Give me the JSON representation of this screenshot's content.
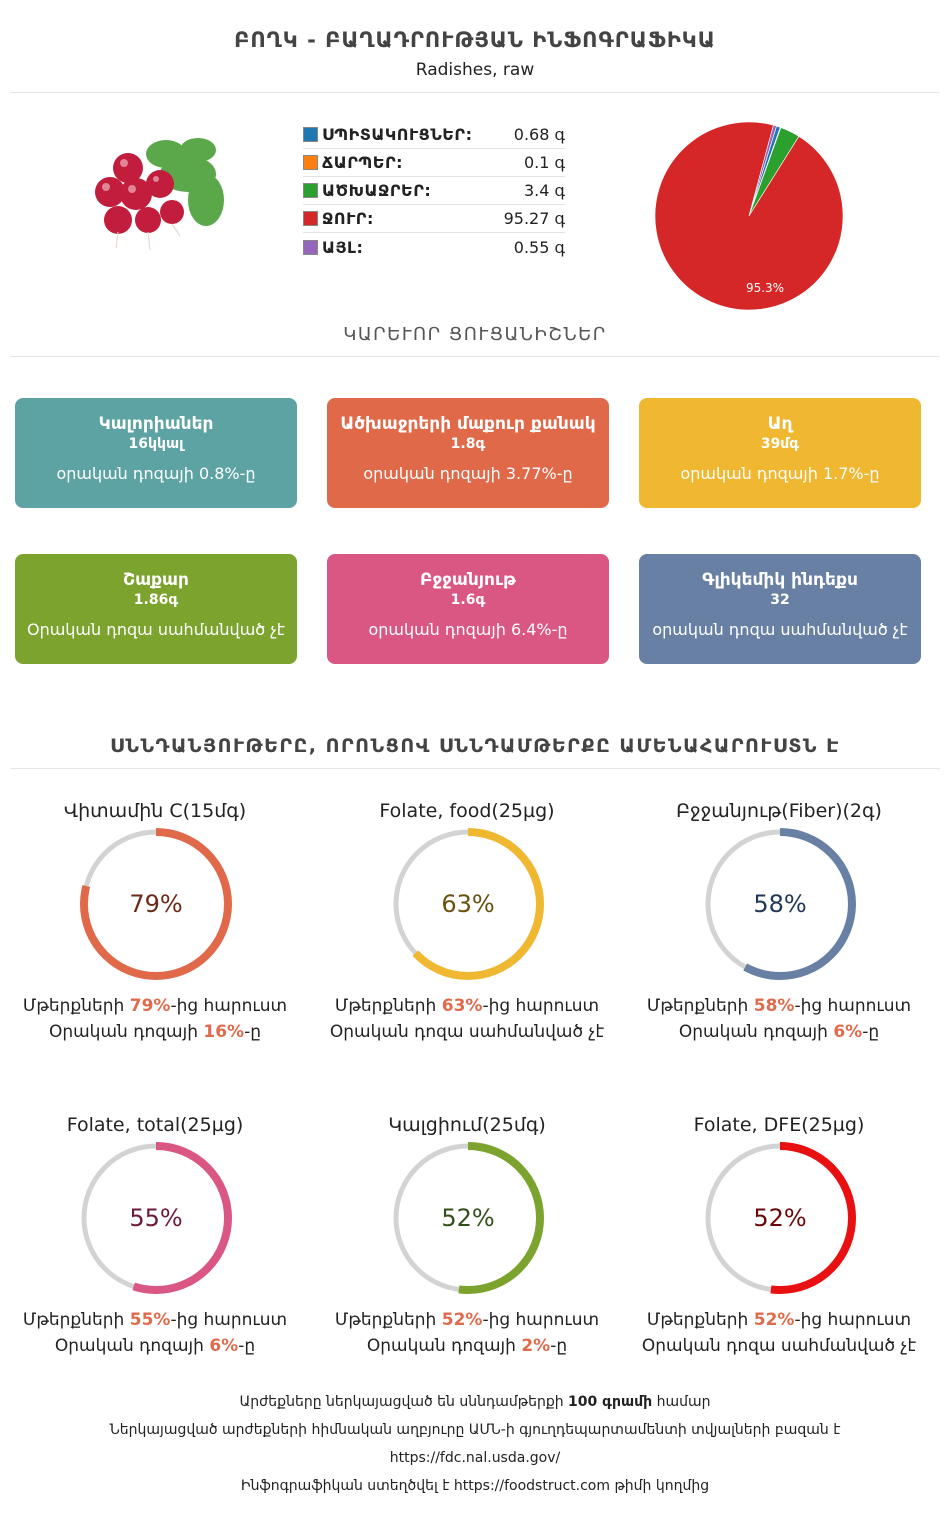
{
  "header": {
    "title": "ԲՈՂԿ - ԲԱՂԱԴՐՈՒԹՅԱՆ ԻՆՖՈԳՐԱՖԻԿԱ",
    "subtitle": "Radishes, raw"
  },
  "composition": [
    {
      "name": "ՍՊԻՏԱԿՈՒՑՆԵՐ:",
      "value": "0.68 գ",
      "color": "#1f77b4"
    },
    {
      "name": "ՃԱՐՊԵՐ:",
      "value": "0.1 գ",
      "color": "#ff7f0e"
    },
    {
      "name": "ԱԾԽԱՋՐԵՐ:",
      "value": "3.4 գ",
      "color": "#2ca02c"
    },
    {
      "name": "ՋՈՒՐ:",
      "value": "95.27 գ",
      "color": "#d62728"
    },
    {
      "name": "ԱՅԼ:",
      "value": "0.55 գ",
      "color": "#9467bd"
    }
  ],
  "chart_data": {
    "type": "pie",
    "categories": [
      "ՍՊԻՏԱԿՈՒՑՆԵՐ",
      "ՃԱՐՊԵՐ",
      "ԱԾԽԱՋՐԵՐ",
      "ՋՈՒՐ",
      "ԱՅԼ"
    ],
    "values": [
      0.68,
      0.1,
      3.4,
      95.27,
      0.55
    ],
    "colors": [
      "#1f77b4",
      "#ff7f0e",
      "#2ca02c",
      "#d62728",
      "#9467bd"
    ],
    "slice_label": "95.3%"
  },
  "key_section_title": "ԿԱՐԵՒՈՐ ՑՈՒՑԱՆԻՇՆԵՐ",
  "cards": [
    {
      "name": "Կալորիաներ",
      "amount": "16կկալ",
      "note": "օրական դոզայի 0.8%-ը",
      "color": "#5ea3a3"
    },
    {
      "name": "Ածխաջրերի մաքուր քանակ",
      "amount": "1.8գ",
      "note": "օրական դոզայի 3.77%-ը",
      "color": "#e0694a"
    },
    {
      "name": "Աղ",
      "amount": "39մգ",
      "note": "օրական դոզայի 1.7%-ը",
      "color": "#f0b731"
    },
    {
      "name": "Շաքար",
      "amount": "1.86գ",
      "note": "Օրական դոզա սահմանված չէ",
      "color": "#7ba32e"
    },
    {
      "name": "Բջջանյութ",
      "amount": "1.6գ",
      "note": "օրական դոզայի 6.4%-ը",
      "color": "#d95782"
    },
    {
      "name": "Գլիկեմիկ ինդեքս",
      "amount": "32",
      "note": "օրական դոզա սահմանված չէ",
      "color": "#6880a4"
    }
  ],
  "nutrients_section_title": "ՍՆՆԴԱՆՅՈՒԹԵՐԸ, ՈՐՈՆՑՈՎ ՍՆՆԴԱՄԹԵՐՔԸ ԱՄԵՆԱՀԱՐՈՒՍՏՆ Է",
  "nutrients": [
    {
      "title": "Վիտամին C(15մգ)",
      "percent": 79,
      "pct_label": "79%",
      "color": "#e0694a",
      "text_color": "#6b2a18",
      "l1_pre": "Մթերքների ",
      "l1_hl": "79%",
      "l1_post": "-ից հարուստ",
      "l2_pre": "Օրական դոզայի ",
      "l2_hl": "16%",
      "l2_post": "-ը"
    },
    {
      "title": "Folate, food(25µg)",
      "percent": 63,
      "pct_label": "63%",
      "color": "#f0b731",
      "text_color": "#6b5010",
      "l1_pre": "Մթերքների ",
      "l1_hl": "63%",
      "l1_post": "-ից հարուստ",
      "l2_pre": "Օրական դոզա սահմանված չէ",
      "l2_hl": "",
      "l2_post": ""
    },
    {
      "title": "Բջջանյութ(Fiber)(2գ)",
      "percent": 58,
      "pct_label": "58%",
      "color": "#6880a4",
      "text_color": "#223858",
      "l1_pre": "Մթերքների ",
      "l1_hl": "58%",
      "l1_post": "-ից հարուստ",
      "l2_pre": "Օրական դոզայի ",
      "l2_hl": "6%",
      "l2_post": "-ը"
    },
    {
      "title": "Folate, total(25µg)",
      "percent": 55,
      "pct_label": "55%",
      "color": "#d95782",
      "text_color": "#6b1a38",
      "l1_pre": "Մթերքների ",
      "l1_hl": "55%",
      "l1_post": "-ից հարուստ",
      "l2_pre": "Օրական դոզայի ",
      "l2_hl": "6%",
      "l2_post": "-ը"
    },
    {
      "title": "Կալցիում(25մգ)",
      "percent": 52,
      "pct_label": "52%",
      "color": "#7ba32e",
      "text_color": "#34501a",
      "l1_pre": "Մթերքների ",
      "l1_hl": "52%",
      "l1_post": "-ից հարուստ",
      "l2_pre": "Օրական դոզայի ",
      "l2_hl": "2%",
      "l2_post": "-ը"
    },
    {
      "title": "Folate, DFE(25µg)",
      "percent": 52,
      "pct_label": "52%",
      "color": "#e81010",
      "text_color": "#6b0808",
      "l1_pre": "Մթերքների ",
      "l1_hl": "52%",
      "l1_post": "-ից հարուստ",
      "l2_pre": "Օրական դոզա սահմանված չէ",
      "l2_hl": "",
      "l2_post": ""
    }
  ],
  "footer": {
    "line1_pre": "Արժեքները ներկայացված են սննդամթերքի ",
    "line1_bold": "100 գրամի",
    "line1_post": " համար",
    "line2": "Ներկայացված արժեքների հիմնական աղբյուրը ԱՄՆ-ի գյուղդեպարտամենտի տվյալների բազան է",
    "line3": "https://fdc.nal.usda.gov/",
    "line4_pre": "Ինֆոգրաֆիկան ստեղծվել է ",
    "line4_link": "https://foodstruct.com",
    "line4_post": " թիմի կողմից"
  }
}
